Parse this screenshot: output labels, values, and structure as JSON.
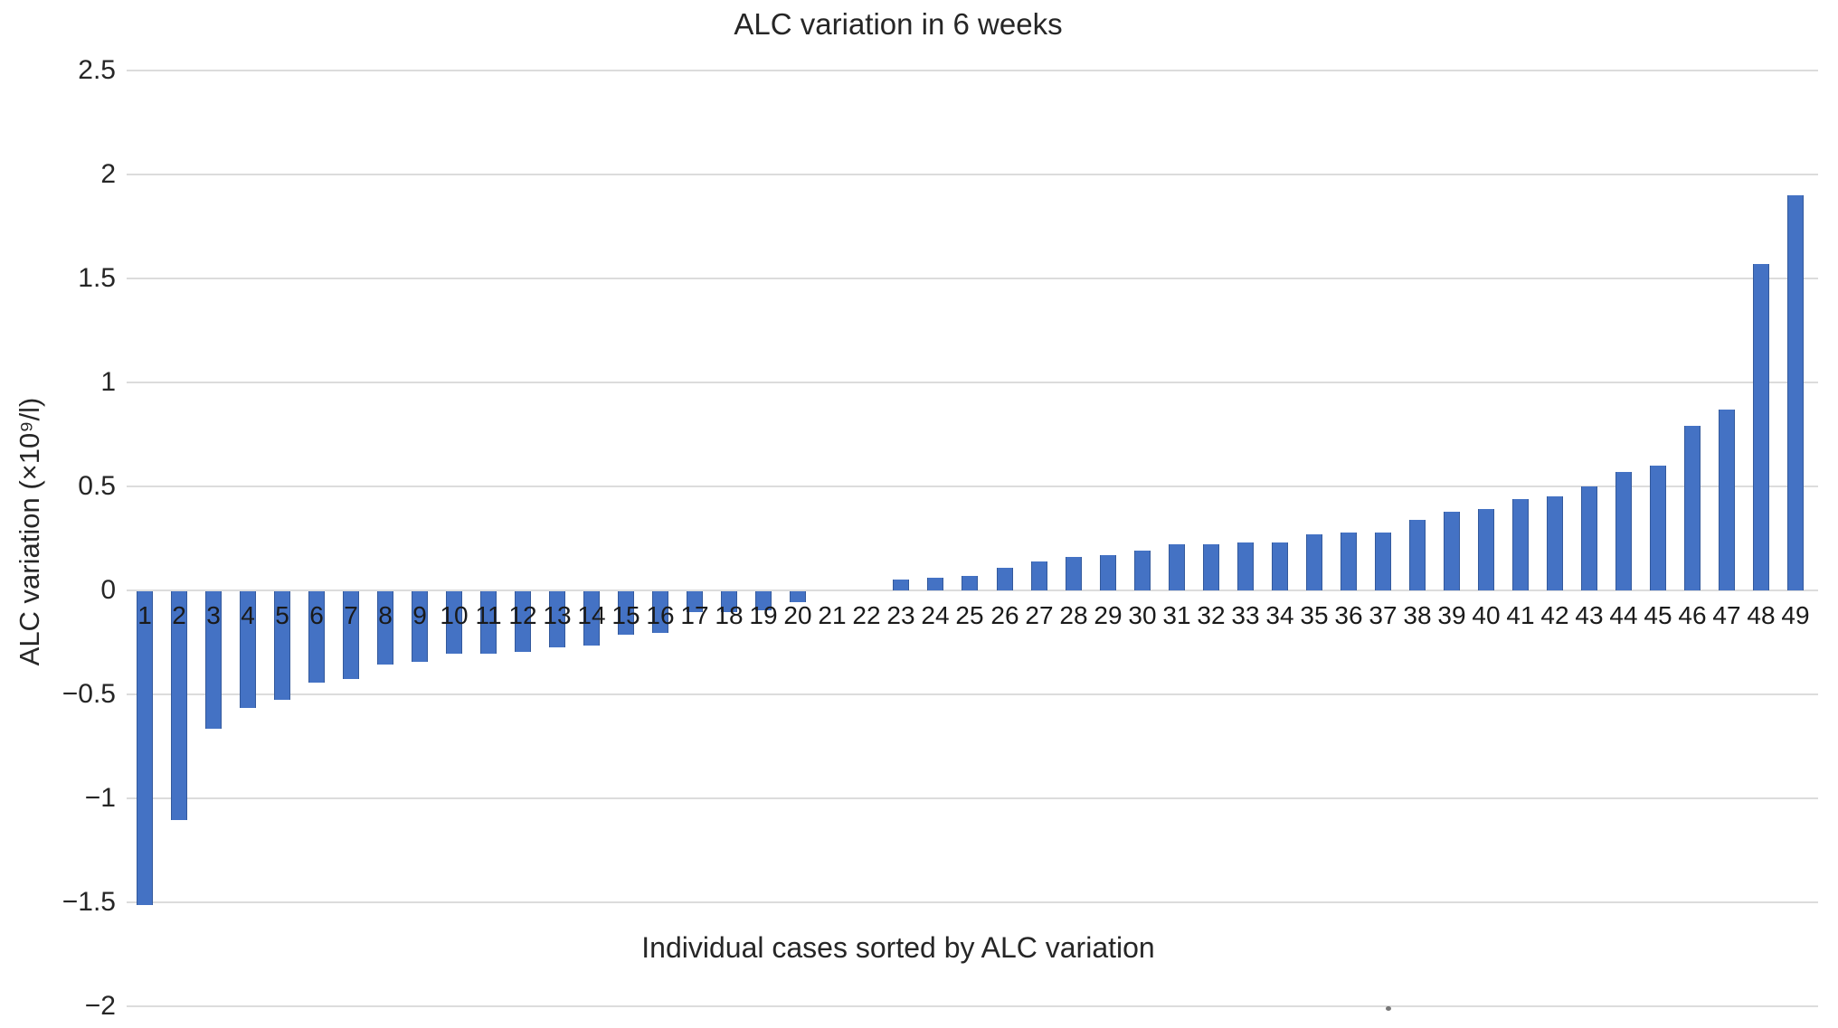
{
  "chart_data": {
    "type": "bar",
    "title": "ALC variation in 6 weeks",
    "xlabel": "Individual cases sorted by ALC variation",
    "ylabel": "ALC variation (×10⁹/l)",
    "categories": [
      "1",
      "2",
      "3",
      "4",
      "5",
      "6",
      "7",
      "8",
      "9",
      "10",
      "11",
      "12",
      "13",
      "14",
      "15",
      "16",
      "17",
      "18",
      "19",
      "20",
      "21",
      "22",
      "23",
      "24",
      "25",
      "26",
      "27",
      "28",
      "29",
      "30",
      "31",
      "32",
      "33",
      "34",
      "35",
      "36",
      "37",
      "38",
      "39",
      "40",
      "41",
      "42",
      "43",
      "44",
      "45",
      "46",
      "47",
      "48",
      "49"
    ],
    "values": [
      -1.51,
      -1.1,
      -0.66,
      -0.56,
      -0.52,
      -0.44,
      -0.42,
      -0.35,
      -0.34,
      -0.3,
      -0.3,
      -0.29,
      -0.27,
      -0.26,
      -0.21,
      -0.2,
      -0.1,
      -0.1,
      -0.09,
      -0.05,
      0.0,
      0.0,
      0.05,
      0.06,
      0.07,
      0.11,
      0.14,
      0.16,
      0.17,
      0.19,
      0.22,
      0.22,
      0.23,
      0.23,
      0.27,
      0.28,
      0.28,
      0.34,
      0.38,
      0.39,
      0.44,
      0.45,
      0.5,
      0.57,
      0.6,
      0.79,
      0.87,
      1.57,
      1.9
    ],
    "ylim": [
      -2,
      2.5
    ],
    "ytick_step": 0.5,
    "ytick_labels": [
      "2.5",
      "2",
      "1.5",
      "1",
      "0.5",
      "0",
      "−0.5",
      "−1",
      "−1.5",
      "−2"
    ],
    "grid": true,
    "legend": false,
    "bar_color": "#4472c4",
    "bar_edge_color": "#33599c",
    "gridline_color": "#dcdcdc",
    "text_color": "#262626",
    "background": "#ffffff"
  }
}
